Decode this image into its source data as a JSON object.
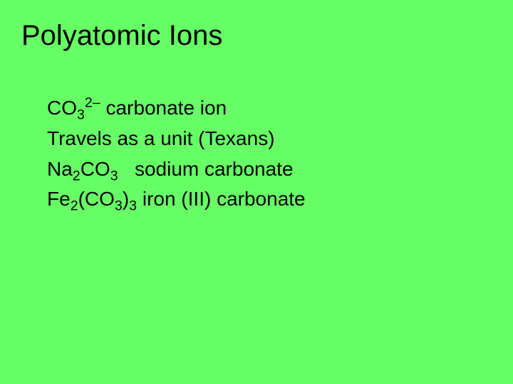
{
  "slide": {
    "background_color": "#66ff66",
    "text_color": "#000000",
    "title": "Polyatomic Ions",
    "title_fontsize": 40,
    "body_fontsize": 28,
    "line1": {
      "pre": "CO",
      "sub1": "3",
      "sup1": "2–",
      "post": " carbonate ion"
    },
    "line2": "Travels as a unit (Texans)",
    "line3": {
      "pre": "Na",
      "sub1": "2",
      "mid1": "CO",
      "sub2": "3",
      "post": "   sodium carbonate"
    },
    "line4": {
      "pre": "Fe",
      "sub1": "2",
      "mid1": "(CO",
      "sub2": "3",
      "mid2": ")",
      "sub3": "3",
      "post": " iron (III) carbonate"
    }
  }
}
